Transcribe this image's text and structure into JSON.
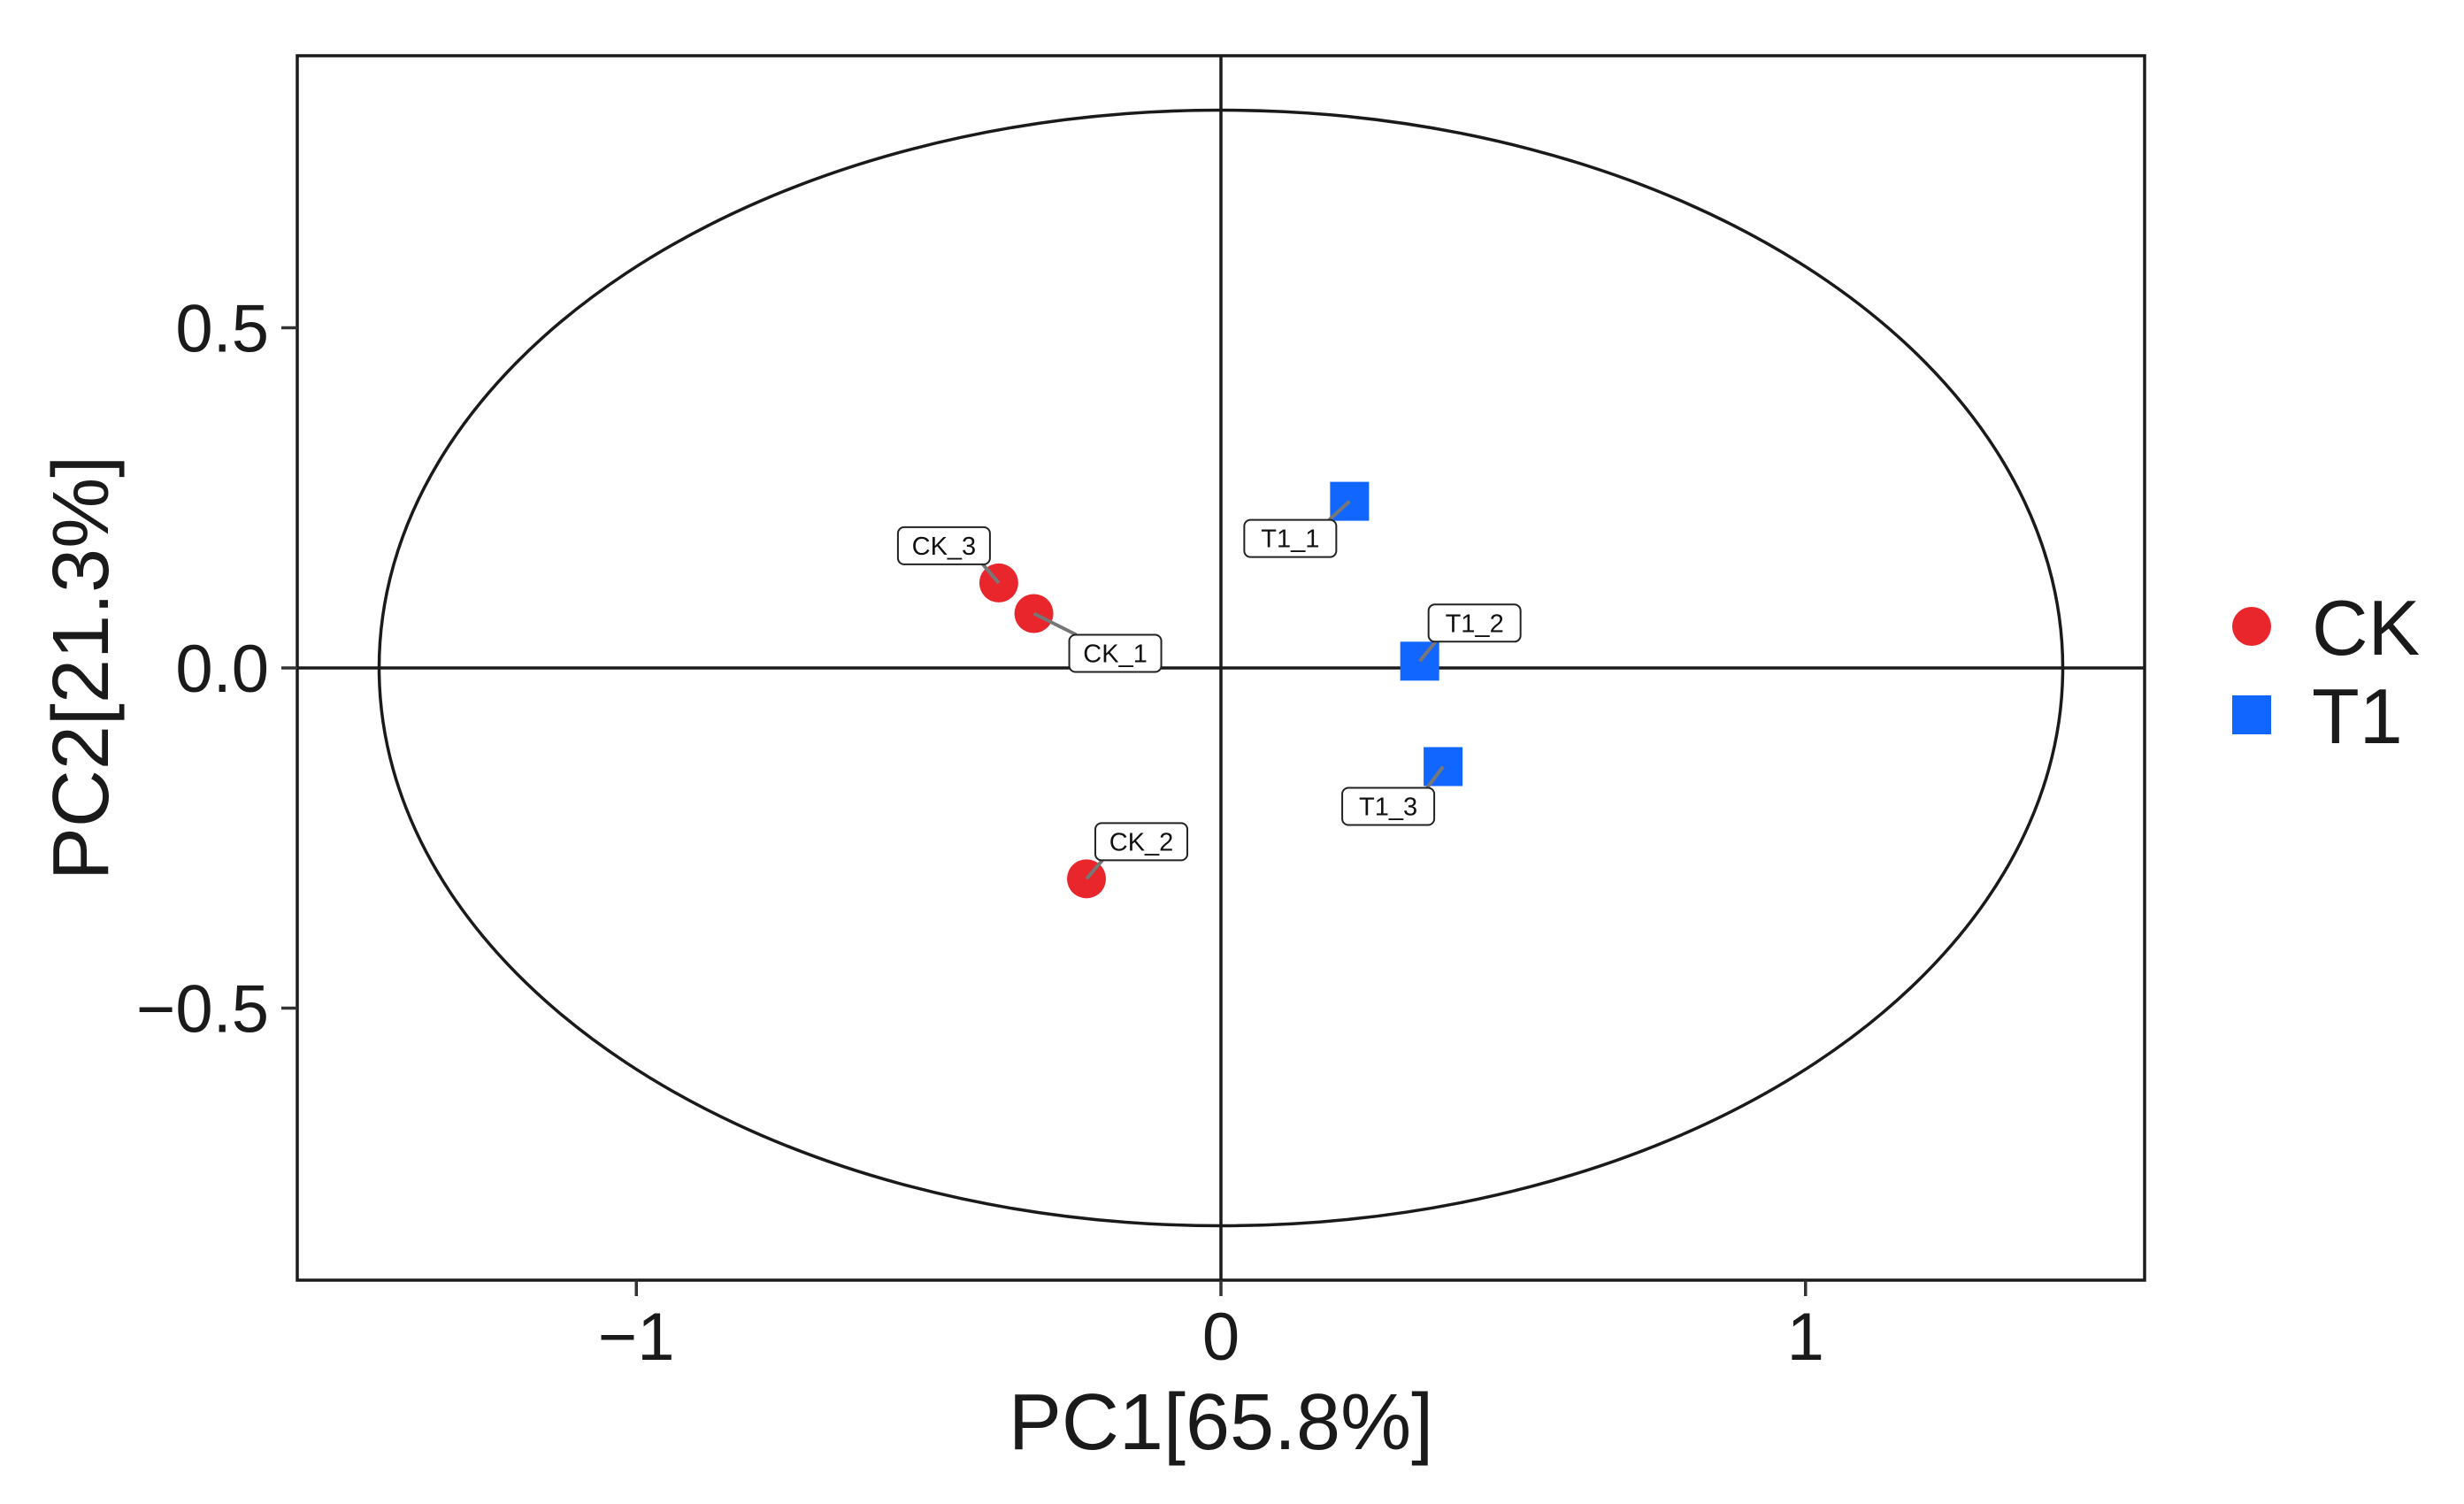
{
  "chart_data": {
    "type": "scatter",
    "title": "",
    "xlabel": "PC1[65.8%]",
    "ylabel": "PC2[21.3%]",
    "xlim": [
      -1.58,
      1.58
    ],
    "ylim": [
      -0.9,
      0.9
    ],
    "x_ticks": [
      {
        "value": -1,
        "label": "−1"
      },
      {
        "value": 0,
        "label": "0"
      },
      {
        "value": 1,
        "label": "1"
      }
    ],
    "y_ticks": [
      {
        "value": 0.5,
        "label": "0.5"
      },
      {
        "value": 0.0,
        "label": "0.0"
      },
      {
        "value": -0.5,
        "label": "−0.5"
      }
    ],
    "grid": false,
    "zero_lines": true,
    "confidence_ellipse": {
      "rx": 1.44,
      "ry": 0.82
    },
    "legend": {
      "position": "right"
    },
    "series": [
      {
        "name": "CK",
        "marker": "circle",
        "color": "#e8262b",
        "points": [
          {
            "label": "CK_1",
            "x": -0.32,
            "y": 0.08
          },
          {
            "label": "CK_2",
            "x": -0.23,
            "y": -0.31
          },
          {
            "label": "CK_3",
            "x": -0.38,
            "y": 0.125
          }
        ]
      },
      {
        "name": "T1",
        "marker": "square",
        "color": "#1166ff",
        "points": [
          {
            "label": "T1_1",
            "x": 0.22,
            "y": 0.245
          },
          {
            "label": "T1_2",
            "x": 0.34,
            "y": 0.01
          },
          {
            "label": "T1_3",
            "x": 0.38,
            "y": -0.145
          }
        ]
      }
    ]
  }
}
